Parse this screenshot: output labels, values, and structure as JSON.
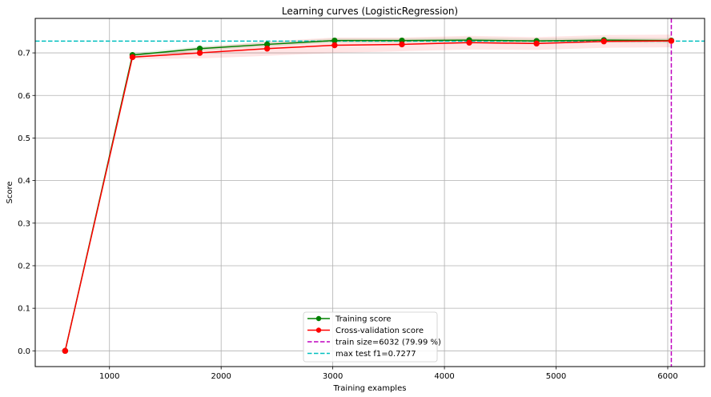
{
  "chart_data": {
    "type": "line",
    "title": "Learning curves (LogisticRegression)",
    "xlabel": "Training examples",
    "ylabel": "Score",
    "xlim": [
      335,
      6330
    ],
    "ylim": [
      -0.037,
      0.781
    ],
    "xticks": [
      1000,
      2000,
      3000,
      4000,
      5000,
      6000
    ],
    "yticks": [
      0.0,
      0.1,
      0.2,
      0.3,
      0.4,
      0.5,
      0.6,
      0.7
    ],
    "grid": true,
    "legend_position": "bottom-center",
    "x": [
      603,
      1206,
      1809,
      2412,
      3016,
      3619,
      4222,
      4825,
      5428,
      6032
    ],
    "series": [
      {
        "name": "Training score",
        "color": "#008000",
        "marker": "circle",
        "values": [
          0.0,
          0.695,
          0.71,
          0.72,
          0.729,
          0.729,
          0.73,
          0.728,
          0.73,
          0.729
        ],
        "band_lower": [
          0.0,
          0.69,
          0.705,
          0.715,
          0.724,
          0.724,
          0.724,
          0.722,
          0.724,
          0.723
        ],
        "band_upper": [
          0.0,
          0.7,
          0.715,
          0.725,
          0.734,
          0.734,
          0.736,
          0.734,
          0.736,
          0.735
        ],
        "band_color": "#008000"
      },
      {
        "name": "Cross-validation score",
        "color": "#ff0000",
        "marker": "circle",
        "values": [
          0.0,
          0.69,
          0.7,
          0.71,
          0.718,
          0.72,
          0.724,
          0.722,
          0.727,
          0.728
        ],
        "band_lower": [
          0.0,
          0.685,
          0.687,
          0.693,
          0.7,
          0.704,
          0.708,
          0.707,
          0.712,
          0.713
        ],
        "band_upper": [
          0.0,
          0.695,
          0.713,
          0.727,
          0.736,
          0.736,
          0.74,
          0.737,
          0.742,
          0.743
        ],
        "band_color": "#ff0000"
      }
    ],
    "reference_lines": [
      {
        "name": "train size=6032 (79.99 %)",
        "orientation": "vertical",
        "value": 6032,
        "color": "#bf00bf",
        "style": "dashed"
      },
      {
        "name": "max test f1=0.7277",
        "orientation": "horizontal",
        "value": 0.7277,
        "color": "#00bfbf",
        "style": "dashed"
      }
    ]
  }
}
